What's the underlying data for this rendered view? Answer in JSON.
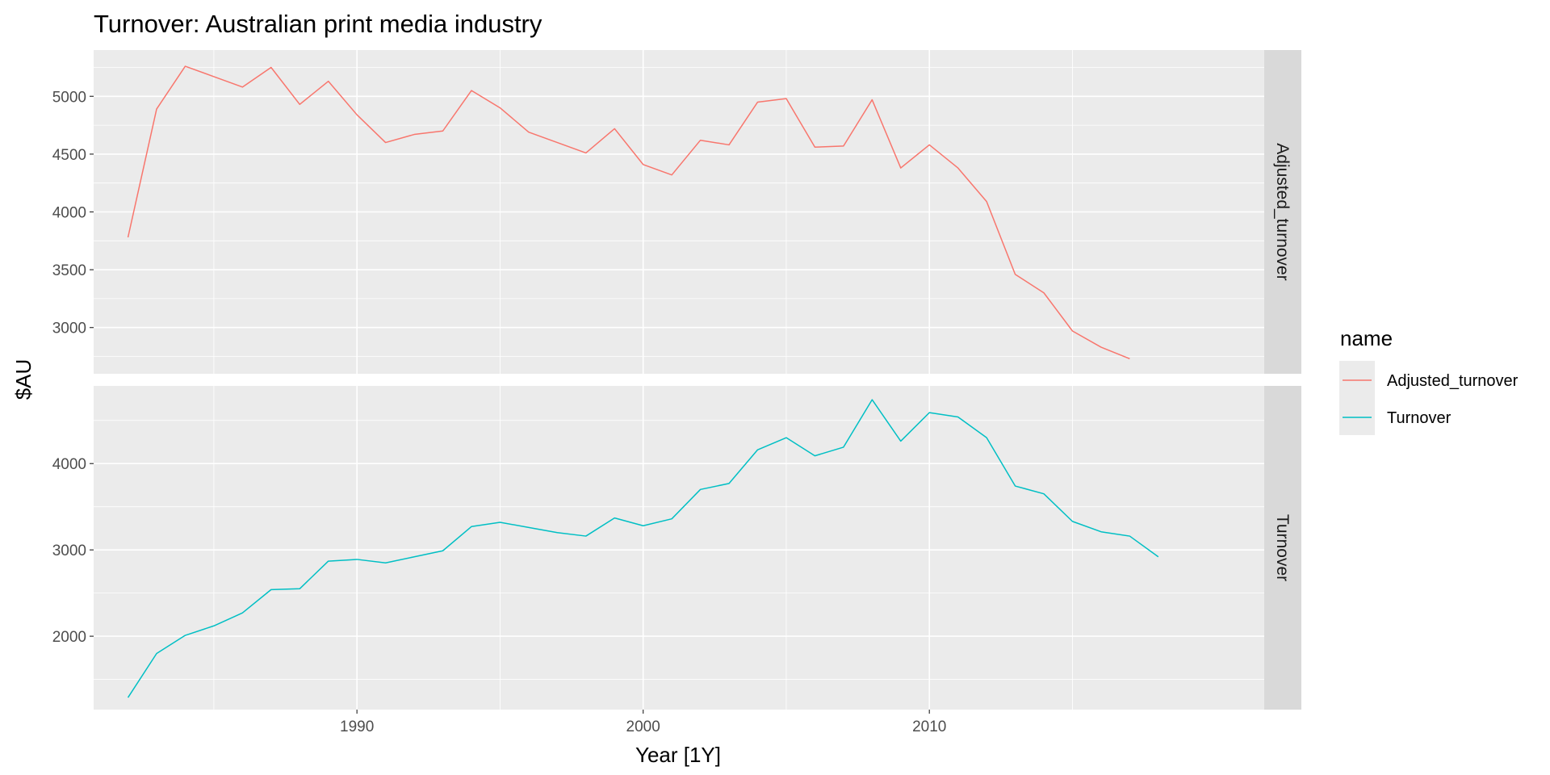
{
  "chart_data": {
    "type": "line",
    "title": "Turnover: Australian print media industry",
    "xlabel": "Year [1Y]",
    "ylabel": "$AU",
    "x_ticks": [
      1990,
      2000,
      2010
    ],
    "xlim": [
      1980.8,
      2021.7
    ],
    "grid": true,
    "legend": {
      "title": "name",
      "placement": "right",
      "entries": [
        "Adjusted_turnover",
        "Turnover"
      ]
    },
    "panels": [
      {
        "strip": "Adjusted_turnover",
        "series_name": "Adjusted_turnover",
        "color": "#F8766D",
        "ylim": [
          2600,
          5400
        ],
        "y_ticks": [
          3000,
          3500,
          4000,
          4500,
          5000
        ],
        "y_tick_labels": [
          "3000",
          "3500",
          "4000",
          "4500",
          "5000"
        ],
        "x": [
          1982,
          1983,
          1984,
          1985,
          1986,
          1987,
          1988,
          1989,
          1990,
          1991,
          1992,
          1993,
          1994,
          1995,
          1996,
          1997,
          1998,
          1999,
          2000,
          2001,
          2002,
          2003,
          2004,
          2005,
          2006,
          2007,
          2008,
          2009,
          2010,
          2011,
          2012,
          2013,
          2014,
          2015,
          2016,
          2017
        ],
        "values": [
          3780,
          4890,
          5260,
          5170,
          5080,
          5250,
          4930,
          5130,
          4840,
          4600,
          4670,
          4700,
          5050,
          4900,
          4690,
          4600,
          4510,
          4720,
          4410,
          4320,
          4620,
          4580,
          4950,
          4980,
          4560,
          4570,
          4970,
          4380,
          4580,
          4380,
          4090,
          3460,
          3300,
          2970,
          2830,
          2730
        ]
      },
      {
        "strip": "Turnover",
        "series_name": "Turnover",
        "color": "#00BFC4",
        "ylim": [
          1150,
          4900
        ],
        "y_ticks": [
          2000,
          3000,
          4000
        ],
        "y_tick_labels": [
          "2000",
          "3000",
          "4000"
        ],
        "x": [
          1982,
          1983,
          1984,
          1985,
          1986,
          1987,
          1988,
          1989,
          1990,
          1991,
          1992,
          1993,
          1994,
          1995,
          1996,
          1997,
          1998,
          1999,
          2000,
          2001,
          2002,
          2003,
          2004,
          2005,
          2006,
          2007,
          2008,
          2009,
          2010,
          2011,
          2012,
          2013,
          2014,
          2015,
          2016,
          2017,
          2018
        ],
        "values": [
          1290,
          1800,
          2010,
          2120,
          2270,
          2540,
          2550,
          2870,
          2890,
          2850,
          2920,
          2990,
          3270,
          3320,
          3260,
          3200,
          3160,
          3370,
          3280,
          3360,
          3700,
          3770,
          4160,
          4300,
          4090,
          4190,
          4740,
          4260,
          4590,
          4540,
          4300,
          3740,
          3650,
          3330,
          3210,
          3160,
          2920
        ]
      }
    ]
  }
}
